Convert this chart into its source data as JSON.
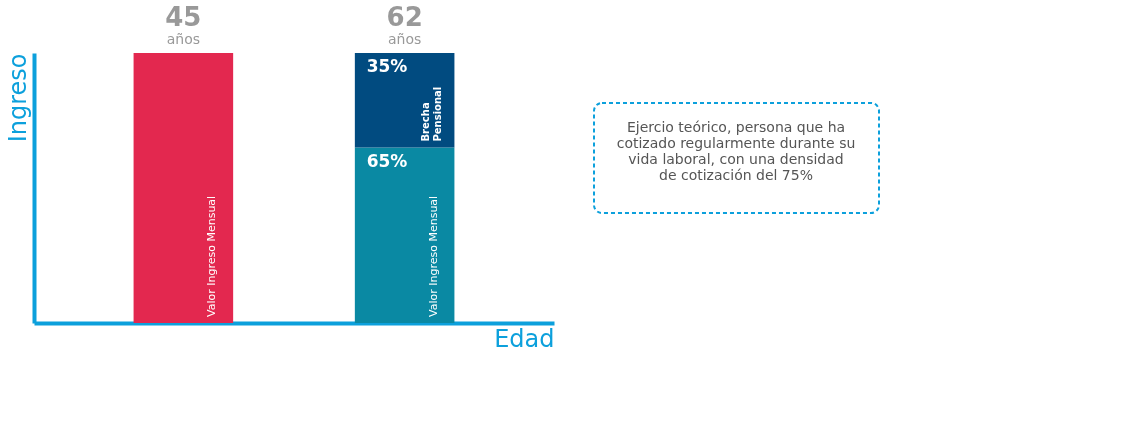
{
  "chart_data": {
    "type": "bar",
    "ylim": [
      0,
      100
    ],
    "tick_labels": false,
    "stacked": true,
    "xlabel": "Edad",
    "ylabel": "Ingreso",
    "categories": [
      "45 años",
      "62 años"
    ],
    "series": [
      {
        "name": "Valor Ingreso Mensual",
        "colors": [
          "#e3284f",
          "#0a89a3"
        ],
        "values": [
          100,
          65
        ],
        "value_labels": [
          null,
          "65%"
        ]
      },
      {
        "name": "Brecha Pensional",
        "color": "#014b80",
        "values": [
          null,
          35
        ],
        "value_labels": [
          null,
          "35%"
        ]
      }
    ],
    "annotations": [
      "Ejercio teórico, persona que ha cotizado regularmente durante su vida laboral, con una densidad de cotización del 75%"
    ],
    "grid": false,
    "legend": false
  }
}
